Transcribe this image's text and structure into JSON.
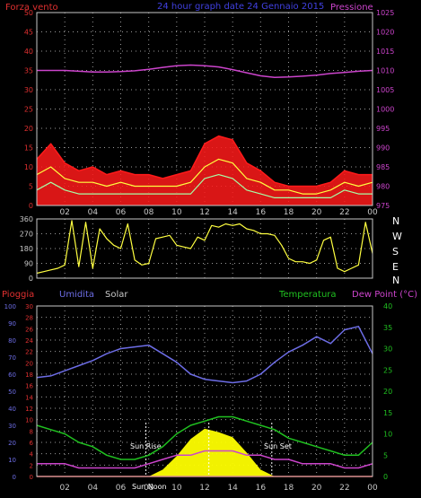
{
  "header": {
    "left": "Forza vento",
    "center": "24 hour graph date  24 Gennaio 2015",
    "right": "Pressione"
  },
  "colors": {
    "background": "#000000",
    "frame": "#c8c8c8",
    "grid": "#9a9a9a",
    "wind_gust": "#ff1a1a",
    "wind_avg": "#ffff40",
    "wind_speed": "#a6ffa6",
    "wind_low": "#ffffff",
    "pressure": "#cc44cc",
    "direction": "#ffff40",
    "rain": "#ff2020",
    "humidity": "#6d6de6",
    "solar": "#ffff00",
    "temperature": "#20c020",
    "dewpoint": "#cc44cc",
    "sun_marker": "#ffffff",
    "axis_left_text": "#e03030",
    "axis_humidity_text": "#6d6de6",
    "axis_temp_text": "#20c020",
    "axis_pressure_text": "#cc44cc"
  },
  "x_ticks": [
    "02",
    "04",
    "06",
    "08",
    "10",
    "12",
    "14",
    "16",
    "18",
    "20",
    "22",
    "00"
  ],
  "compass": [
    "N",
    "W",
    "S",
    "E",
    "N"
  ],
  "panel_bottom_labels": {
    "rain": "Pioggia",
    "humidity": "Umidita",
    "solar": "Solar",
    "temperature": "Temperatura",
    "dewpoint": "Dew Point (°C)"
  },
  "annotations": {
    "sun_rise": "Sun Rise",
    "sun_set": "Sun Set",
    "sun_noon": "Sun Noon"
  },
  "chart_data": [
    {
      "type": "line",
      "name": "wind",
      "x": [
        0,
        1,
        2,
        3,
        4,
        5,
        6,
        7,
        8,
        9,
        10,
        11,
        12,
        13,
        14,
        15,
        16,
        17,
        18,
        19,
        20,
        21,
        22,
        23,
        24
      ],
      "x_unit": "hour",
      "y_left_ticks": [
        0,
        5,
        10,
        15,
        20,
        25,
        30,
        35,
        40,
        45,
        50
      ],
      "ylim_left": [
        0,
        50
      ],
      "y_right_ticks": [
        975,
        980,
        985,
        990,
        995,
        1000,
        1005,
        1010,
        1015,
        1020,
        1025
      ],
      "ylim_right": [
        975,
        1025
      ],
      "series": [
        {
          "name": "gust",
          "axis": "left",
          "values": [
            12,
            16,
            11,
            9,
            10,
            8,
            9,
            8,
            8,
            7,
            8,
            9,
            16,
            18,
            17,
            11,
            9,
            6,
            5,
            5,
            5,
            6,
            9,
            8,
            8
          ]
        },
        {
          "name": "average",
          "axis": "left",
          "values": [
            8,
            10,
            7,
            6,
            6,
            5,
            6,
            5,
            5,
            5,
            5,
            6,
            10,
            12,
            11,
            7,
            6,
            4,
            4,
            3,
            3,
            4,
            6,
            5,
            6
          ]
        },
        {
          "name": "speed",
          "axis": "left",
          "values": [
            4,
            6,
            4,
            3,
            3,
            3,
            3,
            3,
            3,
            3,
            3,
            3,
            7,
            8,
            7,
            4,
            3,
            2,
            2,
            2,
            2,
            2,
            4,
            3,
            3
          ]
        },
        {
          "name": "pressure",
          "axis": "right",
          "values": [
            1010,
            1010,
            1010,
            1009.8,
            1009.6,
            1009.6,
            1009.7,
            1009.9,
            1010.3,
            1010.8,
            1011.2,
            1011.4,
            1011.2,
            1010.9,
            1010.2,
            1009.4,
            1008.6,
            1008.2,
            1008.3,
            1008.5,
            1008.8,
            1009.2,
            1009.5,
            1009.8,
            1010
          ]
        }
      ]
    },
    {
      "type": "line",
      "name": "direction",
      "x": [
        0,
        0.5,
        1,
        1.5,
        2,
        2.5,
        3,
        3.5,
        4,
        4.5,
        5,
        5.5,
        6,
        6.5,
        7,
        7.5,
        8,
        8.5,
        9,
        9.5,
        10,
        10.5,
        11,
        11.5,
        12,
        12.5,
        13,
        13.5,
        14,
        14.5,
        15,
        15.5,
        16,
        16.5,
        17,
        17.5,
        18,
        18.5,
        19,
        19.5,
        20,
        20.5,
        21,
        21.5,
        22,
        22.5,
        23,
        23.5,
        24
      ],
      "ylim": [
        0,
        360
      ],
      "y_ticks": [
        0,
        90,
        180,
        270,
        360
      ],
      "values": [
        30,
        40,
        50,
        60,
        80,
        350,
        70,
        340,
        60,
        300,
        240,
        200,
        180,
        330,
        110,
        80,
        90,
        240,
        250,
        260,
        200,
        190,
        180,
        250,
        230,
        320,
        310,
        330,
        320,
        330,
        300,
        290,
        270,
        270,
        260,
        200,
        120,
        100,
        100,
        90,
        110,
        230,
        250,
        60,
        40,
        60,
        80,
        340,
        150
      ]
    },
    {
      "type": "line",
      "name": "weather",
      "x": [
        0,
        1,
        2,
        3,
        4,
        5,
        6,
        7,
        8,
        9,
        10,
        11,
        12,
        13,
        14,
        15,
        16,
        17,
        18,
        19,
        20,
        21,
        22,
        23,
        24
      ],
      "ylim_left": [
        0,
        30
      ],
      "y_rain_ticks": [
        0,
        2,
        4,
        6,
        8,
        10,
        12,
        14,
        16,
        18,
        20,
        22,
        24,
        26,
        28,
        30
      ],
      "ylim_humidity": [
        0,
        100
      ],
      "y_humidity_ticks": [
        0,
        10,
        20,
        30,
        40,
        50,
        60,
        70,
        80,
        90,
        100
      ],
      "ylim_temp": [
        0,
        40
      ],
      "y_temp_ticks": [
        0,
        5,
        10,
        15,
        20,
        25,
        30,
        35,
        40
      ],
      "series": [
        {
          "name": "Pioggia",
          "axis": "rain",
          "values": [
            0,
            0,
            0,
            0,
            0,
            0,
            0,
            0,
            0,
            0,
            0,
            0,
            0,
            0,
            0,
            0,
            0,
            0,
            0,
            0,
            0,
            0,
            0,
            0,
            0
          ]
        },
        {
          "name": "Umidita",
          "axis": "humidity",
          "values": [
            58,
            59,
            62,
            65,
            68,
            72,
            75,
            76,
            77,
            72,
            67,
            60,
            57,
            56,
            55,
            56,
            60,
            67,
            73,
            77,
            82,
            78,
            86,
            88,
            72
          ]
        },
        {
          "name": "Temperatura",
          "axis": "temp",
          "values": [
            12,
            11,
            10,
            8,
            7,
            5,
            4,
            4,
            5,
            7,
            10,
            12,
            13,
            14,
            14,
            13,
            12,
            11,
            9,
            8,
            7,
            6,
            5,
            5,
            8
          ]
        },
        {
          "name": "Dew Point",
          "axis": "temp",
          "values": [
            3,
            3,
            3,
            2,
            2,
            2,
            2,
            2,
            3,
            4,
            5,
            5,
            6,
            6,
            6,
            5,
            5,
            4,
            4,
            3,
            3,
            3,
            2,
            2,
            3
          ]
        },
        {
          "name": "Solar",
          "axis": "humidity",
          "values": [
            0,
            0,
            0,
            0,
            0,
            0,
            0,
            0,
            0,
            4,
            12,
            22,
            28,
            26,
            23,
            14,
            4,
            0,
            0,
            0,
            0,
            0,
            0,
            0,
            0
          ]
        }
      ],
      "sun_rise_hour": 7.8,
      "sun_noon_hour": 12.3,
      "sun_set_hour": 16.8
    }
  ]
}
